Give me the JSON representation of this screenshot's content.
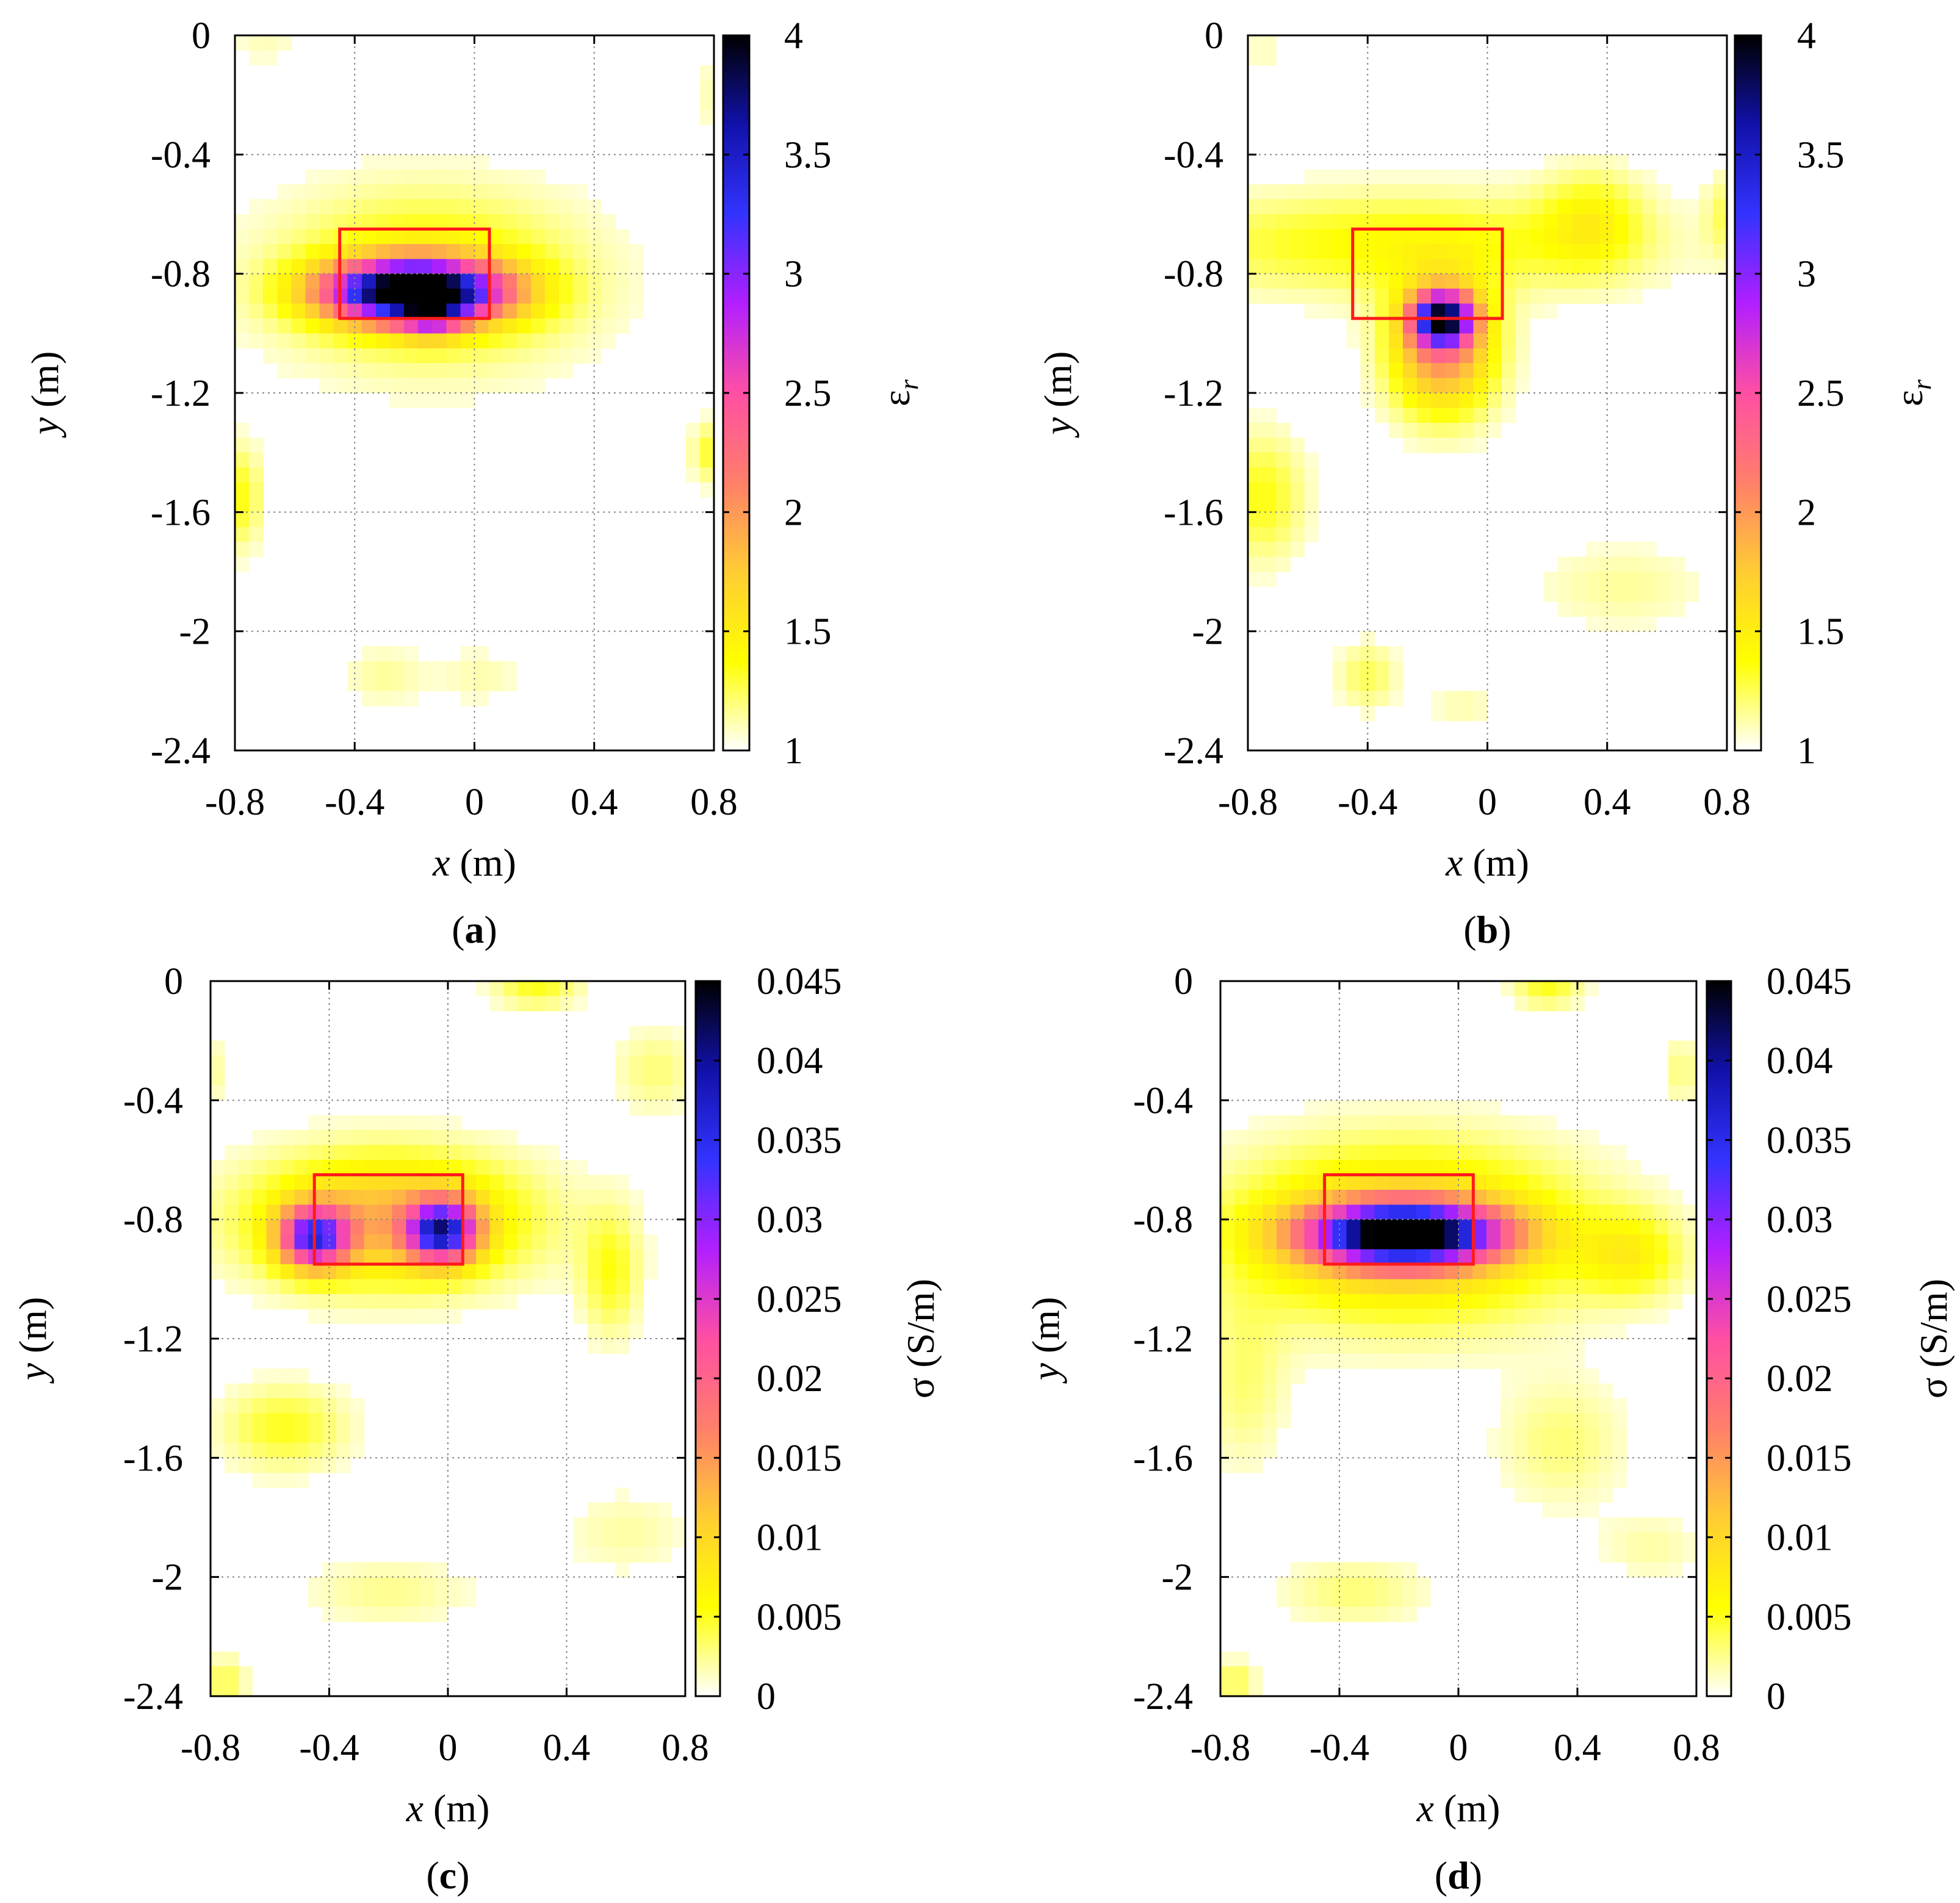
{
  "colormap": [
    "#ffffff",
    "#ffff00",
    "#ffcc33",
    "#ff7f6a",
    "#ff4fa3",
    "#b21fff",
    "#3333ff",
    "#1111aa",
    "#000000"
  ],
  "target_color": "#ff1a1a",
  "chart_data": [
    {
      "type": "heatmap",
      "panel_label": "a",
      "xlabel_var": "x",
      "xlabel_unit": "(m)",
      "ylabel_var": "y",
      "ylabel_unit": "(m)",
      "colorbar_label_main": "ε",
      "colorbar_label_sub": "r",
      "colorbar_label_rest": "",
      "xlim": [
        -0.8,
        0.8
      ],
      "ylim": [
        -2.4,
        0
      ],
      "x_ticks": [
        "-0.8",
        "-0.4",
        "0",
        "0.4",
        "0.8"
      ],
      "y_ticks": [
        "0",
        "-0.4",
        "-0.8",
        "-1.2",
        "-1.6",
        "-2",
        "-2.4"
      ],
      "cbar_range": [
        1,
        4
      ],
      "cbar_ticks": [
        "4",
        "3.5",
        "3",
        "2.5",
        "2",
        "1.5",
        "1"
      ],
      "target_box": {
        "x0": -0.45,
        "x1": 0.05,
        "y0": -0.95,
        "y1": -0.65
      },
      "blobs": [
        {
          "x": -0.2,
          "y": -0.86,
          "sx": 0.2,
          "sy": 0.07,
          "amp": 3.2
        },
        {
          "x": -0.14,
          "y": -0.94,
          "sx": 0.07,
          "sy": 0.05,
          "amp": 0.8
        },
        {
          "x": -0.15,
          "y": -0.82,
          "sx": 0.35,
          "sy": 0.2,
          "amp": 0.5
        },
        {
          "x": -0.78,
          "y": -1.55,
          "sx": 0.05,
          "sy": 0.12,
          "amp": 0.35
        },
        {
          "x": -0.3,
          "y": -2.15,
          "sx": 0.1,
          "sy": 0.07,
          "amp": 0.15
        },
        {
          "x": 0.02,
          "y": -2.15,
          "sx": 0.1,
          "sy": 0.07,
          "amp": 0.12
        },
        {
          "x": 0.78,
          "y": -1.4,
          "sx": 0.04,
          "sy": 0.07,
          "amp": 0.3
        },
        {
          "x": -0.7,
          "y": -0.02,
          "sx": 0.08,
          "sy": 0.06,
          "amp": 0.1
        },
        {
          "x": 0.78,
          "y": -0.2,
          "sx": 0.05,
          "sy": 0.1,
          "amp": 0.1
        }
      ]
    },
    {
      "type": "heatmap",
      "panel_label": "b",
      "xlabel_var": "x",
      "xlabel_unit": "(m)",
      "ylabel_var": "y",
      "ylabel_unit": "(m)",
      "colorbar_label_main": "ε",
      "colorbar_label_sub": "r",
      "colorbar_label_rest": "",
      "xlim": [
        -0.8,
        0.8
      ],
      "ylim": [
        -2.4,
        0
      ],
      "x_ticks": [
        "-0.8",
        "-0.4",
        "0",
        "0.4",
        "0.8"
      ],
      "y_ticks": [
        "0",
        "-0.4",
        "-0.8",
        "-1.2",
        "-1.6",
        "-2",
        "-2.4"
      ],
      "cbar_range": [
        1,
        4
      ],
      "cbar_ticks": [
        "4",
        "3.5",
        "3",
        "2.5",
        "2",
        "1.5",
        "1"
      ],
      "target_box": {
        "x0": -0.45,
        "x1": 0.05,
        "y0": -0.95,
        "y1": -0.65
      },
      "blobs": [
        {
          "x": -0.15,
          "y": -0.95,
          "sx": 0.07,
          "sy": 0.06,
          "amp": 2.3
        },
        {
          "x": -0.15,
          "y": -1.05,
          "sx": 0.12,
          "sy": 0.15,
          "amp": 1.1
        },
        {
          "x": -0.3,
          "y": -0.7,
          "sx": 0.55,
          "sy": 0.12,
          "amp": 0.4
        },
        {
          "x": 0.35,
          "y": -0.62,
          "sx": 0.12,
          "sy": 0.12,
          "amp": 0.35
        },
        {
          "x": -0.75,
          "y": -1.55,
          "sx": 0.1,
          "sy": 0.15,
          "amp": 0.35
        },
        {
          "x": 0.45,
          "y": -1.85,
          "sx": 0.2,
          "sy": 0.1,
          "amp": 0.15
        },
        {
          "x": -0.4,
          "y": -2.15,
          "sx": 0.07,
          "sy": 0.08,
          "amp": 0.25
        },
        {
          "x": -0.08,
          "y": -2.25,
          "sx": 0.08,
          "sy": 0.06,
          "amp": 0.12
        },
        {
          "x": 0.78,
          "y": -0.6,
          "sx": 0.04,
          "sy": 0.1,
          "amp": 0.2
        },
        {
          "x": -0.75,
          "y": -0.05,
          "sx": 0.05,
          "sy": 0.06,
          "amp": 0.1
        }
      ]
    },
    {
      "type": "heatmap",
      "panel_label": "c",
      "xlabel_var": "x",
      "xlabel_unit": "(m)",
      "ylabel_var": "y",
      "ylabel_unit": "(m)",
      "colorbar_label_main": "σ",
      "colorbar_label_sub": "",
      "colorbar_label_rest": " (S/m)",
      "xlim": [
        -0.8,
        0.8
      ],
      "ylim": [
        -2.4,
        0
      ],
      "x_ticks": [
        "-0.8",
        "-0.4",
        "0",
        "0.4",
        "0.8"
      ],
      "y_ticks": [
        "0",
        "-0.4",
        "-0.8",
        "-1.2",
        "-1.6",
        "-2",
        "-2.4"
      ],
      "cbar_range": [
        0,
        0.045
      ],
      "cbar_ticks": [
        "0.045",
        "0.04",
        "0.035",
        "0.03",
        "0.025",
        "0.02",
        "0.015",
        "0.01",
        "0.005",
        "0"
      ],
      "target_box": {
        "x0": -0.45,
        "x1": 0.05,
        "y0": -0.95,
        "y1": -0.65
      },
      "blobs": [
        {
          "x": -0.45,
          "y": -0.86,
          "sx": 0.08,
          "sy": 0.07,
          "amp": 0.028
        },
        {
          "x": -0.02,
          "y": -0.84,
          "sx": 0.08,
          "sy": 0.07,
          "amp": 0.031
        },
        {
          "x": -0.2,
          "y": -0.8,
          "sx": 0.32,
          "sy": 0.15,
          "amp": 0.013
        },
        {
          "x": 0.55,
          "y": -0.98,
          "sx": 0.07,
          "sy": 0.15,
          "amp": 0.005
        },
        {
          "x": -0.55,
          "y": -1.5,
          "sx": 0.15,
          "sy": 0.1,
          "amp": 0.005
        },
        {
          "x": 0.3,
          "y": -0.02,
          "sx": 0.1,
          "sy": 0.05,
          "amp": 0.005
        },
        {
          "x": 0.7,
          "y": -0.3,
          "sx": 0.1,
          "sy": 0.1,
          "amp": 0.003
        },
        {
          "x": -0.75,
          "y": -2.35,
          "sx": 0.05,
          "sy": 0.06,
          "amp": 0.004
        },
        {
          "x": -0.2,
          "y": -2.05,
          "sx": 0.2,
          "sy": 0.08,
          "amp": 0.0025
        },
        {
          "x": 0.6,
          "y": -1.85,
          "sx": 0.15,
          "sy": 0.1,
          "amp": 0.002
        },
        {
          "x": -0.78,
          "y": -0.3,
          "sx": 0.04,
          "sy": 0.08,
          "amp": 0.002
        }
      ]
    },
    {
      "type": "heatmap",
      "panel_label": "d",
      "xlabel_var": "x",
      "xlabel_unit": "(m)",
      "ylabel_var": "y",
      "ylabel_unit": "(m)",
      "colorbar_label_main": "σ",
      "colorbar_label_sub": "",
      "colorbar_label_rest": " (S/m)",
      "xlim": [
        -0.8,
        0.8
      ],
      "ylim": [
        -2.4,
        0
      ],
      "x_ticks": [
        "-0.8",
        "-0.4",
        "0",
        "0.4",
        "0.8"
      ],
      "y_ticks": [
        "0",
        "-0.4",
        "-0.8",
        "-1.2",
        "-1.6",
        "-2",
        "-2.4"
      ],
      "cbar_range": [
        0,
        0.045
      ],
      "cbar_ticks": [
        "0.045",
        "0.04",
        "0.035",
        "0.03",
        "0.025",
        "0.02",
        "0.015",
        "0.01",
        "0.005",
        "0"
      ],
      "target_box": {
        "x0": -0.45,
        "x1": 0.05,
        "y0": -0.95,
        "y1": -0.65
      },
      "blobs": [
        {
          "x": -0.18,
          "y": -0.85,
          "sx": 0.22,
          "sy": 0.07,
          "amp": 0.042
        },
        {
          "x": -0.18,
          "y": -0.85,
          "sx": 0.4,
          "sy": 0.2,
          "amp": 0.012
        },
        {
          "x": 0.58,
          "y": -0.92,
          "sx": 0.12,
          "sy": 0.1,
          "amp": 0.006
        },
        {
          "x": 0.3,
          "y": -0.03,
          "sx": 0.08,
          "sy": 0.04,
          "amp": 0.005
        },
        {
          "x": -0.72,
          "y": -1.35,
          "sx": 0.1,
          "sy": 0.2,
          "amp": 0.003
        },
        {
          "x": 0.35,
          "y": -1.55,
          "sx": 0.15,
          "sy": 0.15,
          "amp": 0.003
        },
        {
          "x": -0.35,
          "y": -2.05,
          "sx": 0.18,
          "sy": 0.08,
          "amp": 0.003
        },
        {
          "x": -0.75,
          "y": -2.35,
          "sx": 0.05,
          "sy": 0.05,
          "amp": 0.004
        },
        {
          "x": 0.75,
          "y": -0.3,
          "sx": 0.04,
          "sy": 0.08,
          "amp": 0.003
        },
        {
          "x": 0.65,
          "y": -1.9,
          "sx": 0.12,
          "sy": 0.08,
          "amp": 0.002
        }
      ]
    }
  ]
}
